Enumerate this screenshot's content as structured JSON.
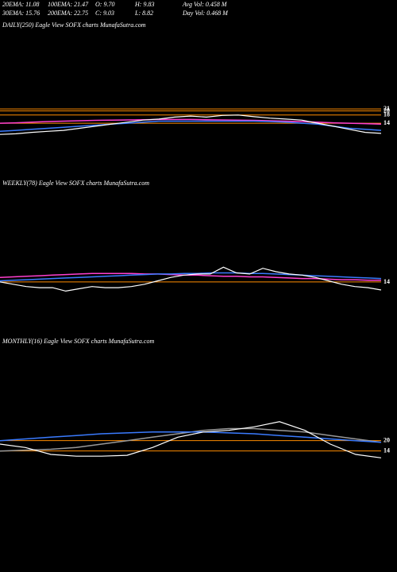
{
  "header": {
    "rows": [
      [
        "20EMA: 11.08",
        "100EMA: 21.47",
        "O: 9.70",
        "H: 9.83",
        "Avg Vol: 0.458 M"
      ],
      [
        "30EMA: 15.76",
        "200EMA: 22.75",
        "C: 9.03",
        "L: 8.82",
        "Day Vol: 0.468 M"
      ]
    ]
  },
  "chart_data": [
    {
      "type": "line",
      "title": "DAILY(250) Eagle   View  SOFX  charts MunafaSutra.com",
      "ylim": [
        0,
        30
      ],
      "yticks": [
        21,
        20,
        18,
        14
      ],
      "grid": true,
      "grid_color": "#ff8c00",
      "series": [
        {
          "color": "#ff3fd0",
          "values": [
            14,
            14.2,
            14.5,
            14.8,
            15,
            15.2,
            15.4,
            15.5,
            15.6,
            15.7,
            15.8,
            15.8,
            15.8,
            15.7,
            15.6,
            15.5,
            15.4,
            15.2,
            15,
            14.8,
            14.5,
            14.2,
            14,
            13.8,
            13.5
          ]
        },
        {
          "color": "#3a7bff",
          "values": [
            10,
            10.5,
            11,
            11.5,
            12,
            12.5,
            13,
            13.5,
            14,
            14.5,
            15,
            15,
            15,
            15,
            15,
            15,
            15,
            14.8,
            14.5,
            14,
            13.5,
            12.5,
            11.5,
            11,
            10.5
          ]
        },
        {
          "color": "#ffffff",
          "values": [
            8.5,
            8.8,
            9.5,
            10,
            10.5,
            11.5,
            12.5,
            13.5,
            14.5,
            15.5,
            16,
            17,
            17.5,
            17,
            17.8,
            18,
            17.2,
            16.5,
            16,
            15.5,
            14,
            12.5,
            11,
            9.5,
            9
          ]
        }
      ]
    },
    {
      "type": "line",
      "title": "WEEKLY(78) Eagle   View  SOFX  charts MunafaSutra.com",
      "ylim": [
        0,
        60
      ],
      "yticks": [
        14
      ],
      "grid": true,
      "grid_color": "#ff8c00",
      "series": [
        {
          "color": "#ff3fd0",
          "values": [
            18,
            18.5,
            19,
            19.5,
            20,
            20.5,
            21,
            21.5,
            21.5,
            21.5,
            21.5,
            21,
            21,
            20.5,
            20,
            20,
            19.5,
            19,
            19,
            18.5,
            18.5,
            18,
            17.5,
            17,
            17,
            16.5,
            16,
            16,
            15.5,
            15.5
          ]
        },
        {
          "color": "#3a7bff",
          "values": [
            15,
            15.5,
            16,
            16.5,
            17,
            17.5,
            18,
            18.5,
            19,
            19.5,
            20,
            20.5,
            21,
            21,
            21.5,
            21.5,
            22,
            22,
            22,
            21.5,
            21.5,
            21,
            20.5,
            20,
            19.5,
            19,
            18.5,
            18,
            17.5,
            17
          ]
        },
        {
          "color": "#ffffff",
          "values": [
            14,
            12,
            10,
            9,
            9,
            6,
            8,
            10,
            9,
            9,
            10,
            12,
            15,
            18,
            20,
            21,
            21,
            27,
            22,
            21,
            26,
            23,
            21,
            20,
            18,
            15,
            12,
            10,
            9,
            7
          ]
        }
      ]
    },
    {
      "type": "line",
      "title": "MONTHLY(16) Eagle   View  SOFX  charts MunafaSutra.com",
      "ylim": [
        0,
        60
      ],
      "yticks": [
        20,
        14
      ],
      "grid": true,
      "grid_color": "#ff8c00",
      "series": [
        {
          "color": "#999999",
          "values": [
            14,
            14.5,
            15,
            16,
            18,
            20,
            22,
            24,
            26,
            27,
            27,
            26,
            25,
            23,
            21,
            19
          ]
        },
        {
          "color": "#3a7bff",
          "values": [
            20,
            21,
            22,
            23,
            24,
            24.5,
            25,
            25,
            25,
            24.5,
            24,
            23,
            22,
            21,
            20,
            19
          ]
        },
        {
          "color": "#ffffff",
          "values": [
            18,
            16,
            12,
            11,
            11,
            11.5,
            16,
            22,
            25,
            26,
            28,
            31,
            26,
            18,
            12,
            10
          ]
        }
      ]
    }
  ]
}
